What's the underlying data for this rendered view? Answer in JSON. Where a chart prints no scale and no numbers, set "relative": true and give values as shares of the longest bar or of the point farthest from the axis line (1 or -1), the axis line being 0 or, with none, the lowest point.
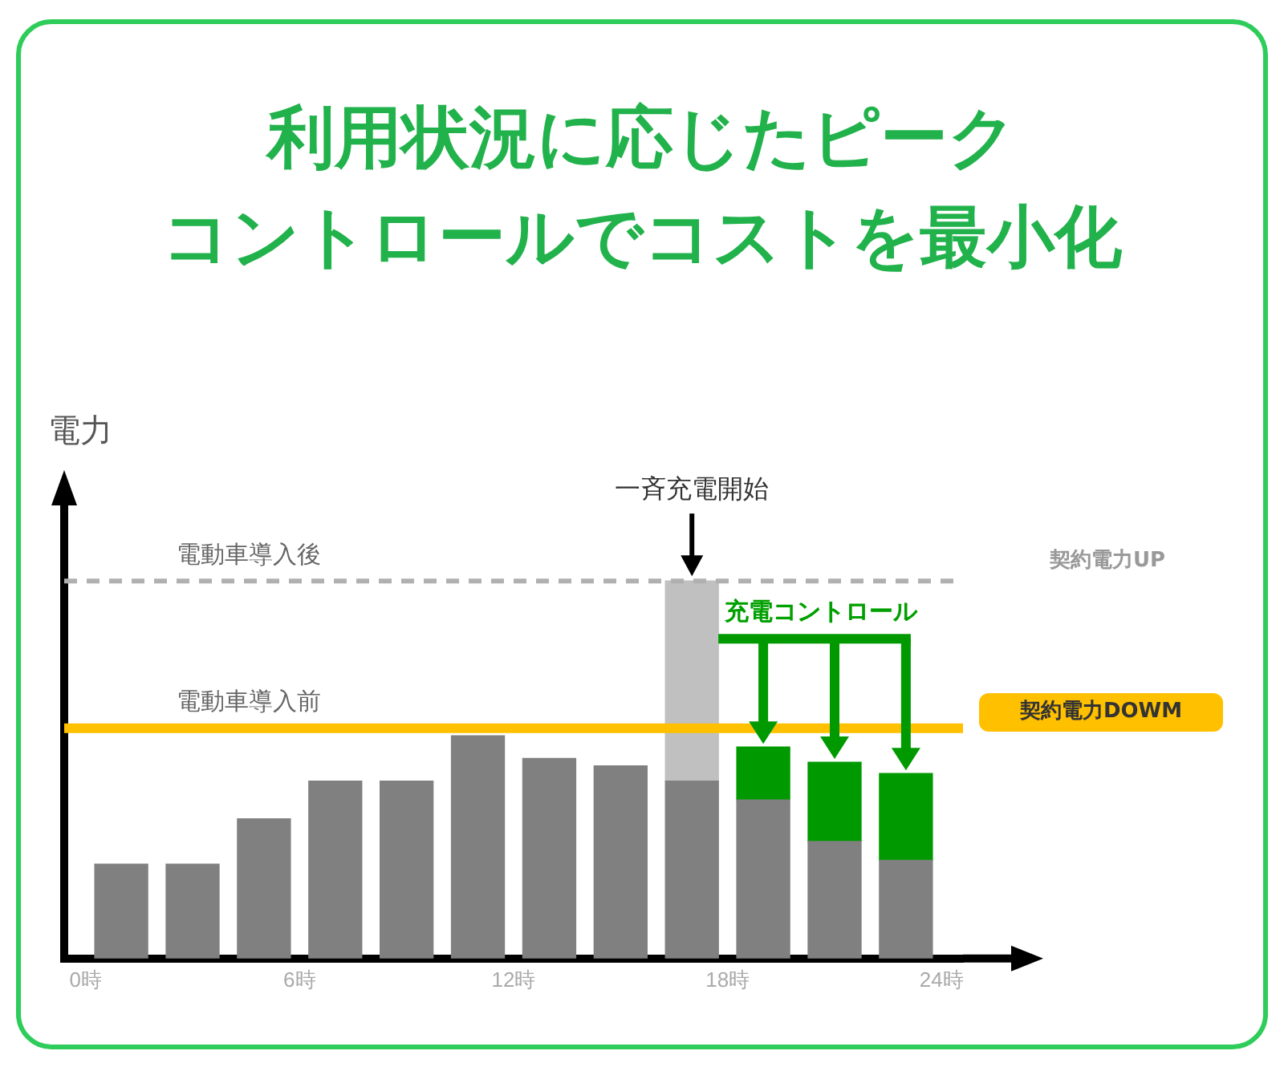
{
  "chart_data": {
    "type": "bar",
    "title": "利用状況に応じたピーク",
    "subtitle": "コントロールでコストを最小化",
    "ylabel": "電力",
    "relative": true,
    "stacked": true,
    "x": [
      1,
      3,
      5,
      7,
      9,
      11,
      13,
      15,
      17,
      19,
      21,
      23
    ],
    "xlim": [
      -0.6,
      24.6
    ],
    "xticks": [
      {
        "value": 0,
        "label": "0時"
      },
      {
        "value": 6,
        "label": "6時"
      },
      {
        "value": 12,
        "label": "12時"
      },
      {
        "value": 18,
        "label": "18時"
      },
      {
        "value": 24,
        "label": "24時"
      }
    ],
    "series": [
      {
        "color": "#808080",
        "values": [
          0.25,
          0.25,
          0.37,
          0.47,
          0.47,
          0.59,
          0.53,
          0.51,
          0.47,
          0.42,
          0.31,
          0.26
        ]
      },
      {
        "color": "#c0c0c0",
        "values": [
          null,
          null,
          null,
          null,
          null,
          null,
          null,
          null,
          0.53,
          null,
          null,
          null
        ]
      },
      {
        "color": "#009a00",
        "values": [
          null,
          null,
          null,
          null,
          null,
          null,
          null,
          null,
          null,
          0.14,
          0.21,
          0.23
        ]
      }
    ],
    "ref_lines": [
      {
        "axis": "y",
        "value": 1.0,
        "label": "電動車導入後",
        "color": "#b0b0b0",
        "line_style": "dashed"
      },
      {
        "axis": "y",
        "value": 0.61,
        "label": "電動車導入前",
        "color": "#ffc000",
        "line_style": "solid"
      }
    ],
    "annotations": [
      {
        "text": "一斉充電開始",
        "x": 17,
        "y": 1.0
      },
      "充電コントロール",
      "契約電力UP",
      "契約電力DOWM"
    ],
    "grid": false,
    "legend": false,
    "tick_labels": "x"
  }
}
